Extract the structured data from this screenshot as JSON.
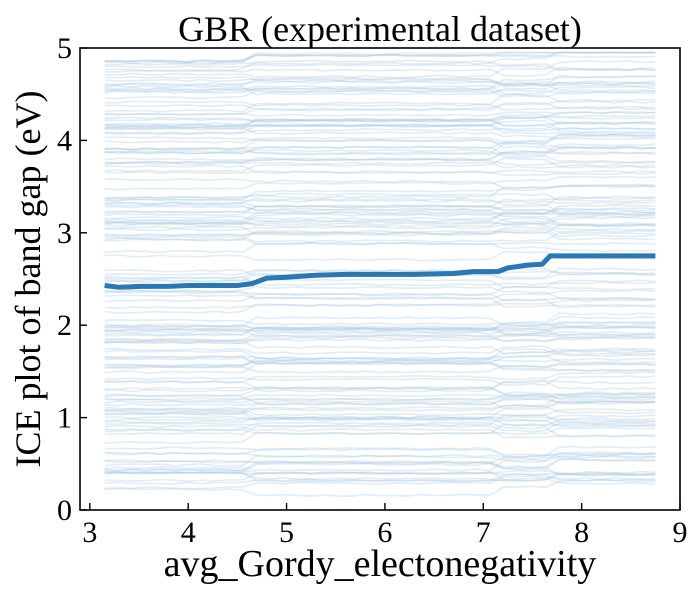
{
  "chart_data": {
    "type": "line",
    "title": "GBR (experimental dataset)",
    "xlabel": "avg_Gordy_electonegativity",
    "ylabel": "ICE plot of band gap (eV)",
    "xlim": [
      2.9,
      9.0
    ],
    "ylim": [
      0,
      5
    ],
    "xticks": [
      "3",
      "4",
      "5",
      "6",
      "7",
      "8",
      "9"
    ],
    "yticks": [
      "0",
      "1",
      "2",
      "3",
      "4",
      "5"
    ],
    "grid": false,
    "ice_color": "#a9c8e2",
    "average_color": "#2a77b3",
    "ice_lines": {
      "count": 160,
      "baseline_range": [
        0.2,
        4.9
      ],
      "step_positions": [
        4.65,
        7.2,
        7.65
      ],
      "x_range": [
        3.15,
        8.75
      ]
    },
    "series": [
      {
        "x": [
          3.15,
          3.3,
          3.5,
          3.8,
          4.0,
          4.2,
          4.5,
          4.65,
          4.8,
          5.0,
          5.3,
          5.6,
          6.0,
          6.3,
          6.7,
          6.9,
          7.15,
          7.25,
          7.45,
          7.6,
          7.68,
          8.0,
          8.4,
          8.75
        ],
        "y": [
          2.43,
          2.41,
          2.42,
          2.42,
          2.43,
          2.43,
          2.43,
          2.45,
          2.51,
          2.52,
          2.54,
          2.55,
          2.55,
          2.55,
          2.56,
          2.58,
          2.58,
          2.62,
          2.65,
          2.66,
          2.75,
          2.75,
          2.75,
          2.75
        ]
      }
    ]
  }
}
